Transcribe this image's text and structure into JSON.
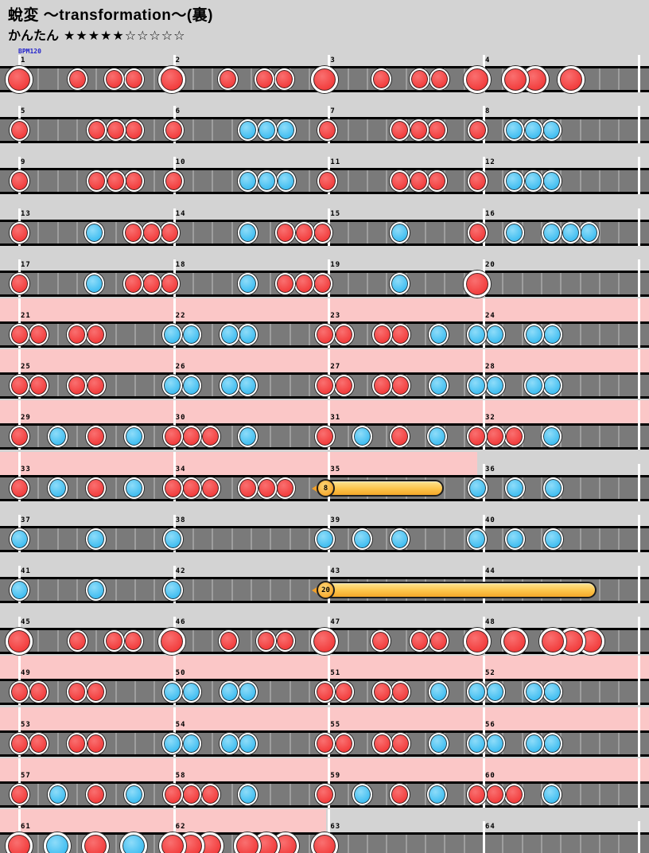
{
  "header": {
    "title": "蛻変 ～transformation～(裏)",
    "difficulty": "かんたん",
    "stars": "★★★★★☆☆☆☆☆",
    "bpm": "BPM120"
  },
  "colors": {
    "background": "#d3d3d3",
    "track": "#7a7a7a",
    "gogo_pink": "#fbc7c7",
    "don_red": "#f23c3c",
    "ka_blue": "#3fbdf1",
    "roll_yellow": "#fcc44a",
    "measure_line": "#ffffff",
    "bpm_text": "#2222cc"
  },
  "note_legend": {
    "d": "small don (red)",
    "D": "big don (red)",
    "k": "small ka (blue)",
    "K": "big ka (blue)",
    "roll": [
      "roll",
      "x_start",
      "x_end",
      "hits_label"
    ]
  },
  "rows": [
    {
      "measures": [
        1,
        2,
        3,
        4
      ],
      "gogo": null,
      "notes": [
        [
          "D",
          24
        ],
        [
          "d",
          97
        ],
        [
          "d",
          143
        ],
        [
          "d",
          168
        ],
        [
          "D",
          216
        ],
        [
          "d",
          286
        ],
        [
          "d",
          332
        ],
        [
          "d",
          357
        ],
        [
          "D",
          408
        ],
        [
          "d",
          479
        ],
        [
          "d",
          527
        ],
        [
          "d",
          552
        ],
        [
          "D",
          600
        ],
        [
          "D",
          648
        ],
        [
          "D",
          673
        ],
        [
          "D",
          718
        ]
      ]
    },
    {
      "measures": [
        5,
        6,
        7,
        8
      ],
      "gogo": null,
      "notes": [
        [
          "d",
          24
        ],
        [
          "d",
          121
        ],
        [
          "d",
          145
        ],
        [
          "d",
          168
        ],
        [
          "d",
          218
        ],
        [
          "k",
          311
        ],
        [
          "k",
          335
        ],
        [
          "k",
          359
        ],
        [
          "d",
          411
        ],
        [
          "d",
          502
        ],
        [
          "d",
          526
        ],
        [
          "d",
          549
        ],
        [
          "d",
          600
        ],
        [
          "k",
          646
        ],
        [
          "k",
          670
        ],
        [
          "k",
          693
        ]
      ]
    },
    {
      "measures": [
        9,
        10,
        11,
        12
      ],
      "gogo": null,
      "notes": [
        [
          "d",
          24
        ],
        [
          "d",
          121
        ],
        [
          "d",
          145
        ],
        [
          "d",
          168
        ],
        [
          "d",
          218
        ],
        [
          "k",
          311
        ],
        [
          "k",
          335
        ],
        [
          "k",
          359
        ],
        [
          "d",
          411
        ],
        [
          "d",
          502
        ],
        [
          "d",
          526
        ],
        [
          "d",
          549
        ],
        [
          "d",
          600
        ],
        [
          "k",
          646
        ],
        [
          "k",
          670
        ],
        [
          "k",
          693
        ]
      ]
    },
    {
      "measures": [
        13,
        14,
        15,
        16
      ],
      "gogo": null,
      "notes": [
        [
          "d",
          24
        ],
        [
          "k",
          118
        ],
        [
          "d",
          167
        ],
        [
          "d",
          190
        ],
        [
          "d",
          213
        ],
        [
          "k",
          311
        ],
        [
          "d",
          358
        ],
        [
          "d",
          382
        ],
        [
          "d",
          405
        ],
        [
          "k",
          502
        ],
        [
          "d",
          600
        ],
        [
          "k",
          646
        ],
        [
          "k",
          693
        ],
        [
          "k",
          717
        ],
        [
          "k",
          740
        ]
      ]
    },
    {
      "measures": [
        17,
        18,
        19,
        20
      ],
      "gogo": null,
      "notes": [
        [
          "d",
          24
        ],
        [
          "k",
          118
        ],
        [
          "d",
          167
        ],
        [
          "d",
          190
        ],
        [
          "d",
          213
        ],
        [
          "k",
          311
        ],
        [
          "d",
          358
        ],
        [
          "d",
          382
        ],
        [
          "d",
          405
        ],
        [
          "k",
          502
        ],
        [
          "D",
          600
        ]
      ]
    },
    {
      "measures": [
        21,
        22,
        23,
        24
      ],
      "gogo": [
        0,
        816
      ],
      "notes": [
        [
          "d",
          24
        ],
        [
          "d",
          48
        ],
        [
          "d",
          96
        ],
        [
          "d",
          120
        ],
        [
          "k",
          216
        ],
        [
          "k",
          240
        ],
        [
          "k",
          288
        ],
        [
          "k",
          311
        ],
        [
          "d",
          408
        ],
        [
          "d",
          432
        ],
        [
          "d",
          480
        ],
        [
          "d",
          503
        ],
        [
          "k",
          551
        ],
        [
          "k",
          599
        ],
        [
          "k",
          622
        ],
        [
          "k",
          671
        ],
        [
          "k",
          694
        ]
      ]
    },
    {
      "measures": [
        25,
        26,
        27,
        28
      ],
      "gogo": [
        0,
        816
      ],
      "notes": [
        [
          "d",
          24
        ],
        [
          "d",
          48
        ],
        [
          "d",
          96
        ],
        [
          "d",
          120
        ],
        [
          "k",
          216
        ],
        [
          "k",
          240
        ],
        [
          "k",
          288
        ],
        [
          "k",
          311
        ],
        [
          "d",
          408
        ],
        [
          "d",
          432
        ],
        [
          "d",
          480
        ],
        [
          "d",
          503
        ],
        [
          "k",
          551
        ],
        [
          "k",
          599
        ],
        [
          "k",
          622
        ],
        [
          "k",
          671
        ],
        [
          "k",
          694
        ]
      ]
    },
    {
      "measures": [
        29,
        30,
        31,
        32
      ],
      "gogo": [
        0,
        816
      ],
      "notes": [
        [
          "d",
          24
        ],
        [
          "k",
          72
        ],
        [
          "d",
          120
        ],
        [
          "k",
          168
        ],
        [
          "d",
          217
        ],
        [
          "d",
          240
        ],
        [
          "d",
          264
        ],
        [
          "k",
          311
        ],
        [
          "d",
          408
        ],
        [
          "k",
          455
        ],
        [
          "d",
          502
        ],
        [
          "k",
          549
        ],
        [
          "d",
          599
        ],
        [
          "d",
          622
        ],
        [
          "d",
          646
        ],
        [
          "k",
          693
        ]
      ]
    },
    {
      "measures": [
        33,
        34,
        35,
        36
      ],
      "gogo": [
        0,
        600
      ],
      "notes": [
        [
          "d",
          24
        ],
        [
          "k",
          72
        ],
        [
          "d",
          120
        ],
        [
          "k",
          168
        ],
        [
          "d",
          217
        ],
        [
          "d",
          240
        ],
        [
          "d",
          264
        ],
        [
          "d",
          311
        ],
        [
          "d",
          335
        ],
        [
          "d",
          358
        ],
        [
          "roll",
          400,
          558,
          "8"
        ],
        [
          "k",
          600
        ],
        [
          "k",
          647
        ],
        [
          "k",
          695
        ]
      ]
    },
    {
      "measures": [
        37,
        38,
        39,
        40
      ],
      "gogo": null,
      "notes": [
        [
          "k",
          24
        ],
        [
          "k",
          120
        ],
        [
          "k",
          217
        ],
        [
          "k",
          408
        ],
        [
          "k",
          455
        ],
        [
          "k",
          502
        ],
        [
          "k",
          599
        ],
        [
          "k",
          647
        ],
        [
          "k",
          695
        ]
      ]
    },
    {
      "measures": [
        41,
        42,
        43,
        44
      ],
      "gogo": null,
      "notes": [
        [
          "k",
          24
        ],
        [
          "k",
          120
        ],
        [
          "k",
          217
        ],
        [
          "roll",
          400,
          750,
          "20"
        ]
      ]
    },
    {
      "measures": [
        45,
        46,
        47,
        48
      ],
      "gogo": null,
      "notes": [
        [
          "D",
          24
        ],
        [
          "d",
          97
        ],
        [
          "d",
          143
        ],
        [
          "d",
          167
        ],
        [
          "D",
          216
        ],
        [
          "d",
          287
        ],
        [
          "d",
          334
        ],
        [
          "d",
          358
        ],
        [
          "D",
          408
        ],
        [
          "d",
          478
        ],
        [
          "d",
          527
        ],
        [
          "d",
          551
        ],
        [
          "D",
          600
        ],
        [
          "D",
          647
        ],
        [
          "D",
          695
        ],
        [
          "D",
          719
        ],
        [
          "D",
          743
        ]
      ]
    },
    {
      "measures": [
        49,
        50,
        51,
        52
      ],
      "gogo": [
        0,
        816
      ],
      "notes": [
        [
          "d",
          24
        ],
        [
          "d",
          48
        ],
        [
          "d",
          96
        ],
        [
          "d",
          120
        ],
        [
          "k",
          216
        ],
        [
          "k",
          240
        ],
        [
          "k",
          288
        ],
        [
          "k",
          311
        ],
        [
          "d",
          408
        ],
        [
          "d",
          432
        ],
        [
          "d",
          480
        ],
        [
          "d",
          503
        ],
        [
          "k",
          551
        ],
        [
          "k",
          599
        ],
        [
          "k",
          622
        ],
        [
          "k",
          671
        ],
        [
          "k",
          694
        ]
      ]
    },
    {
      "measures": [
        53,
        54,
        55,
        56
      ],
      "gogo": [
        0,
        816
      ],
      "notes": [
        [
          "d",
          24
        ],
        [
          "d",
          48
        ],
        [
          "d",
          96
        ],
        [
          "d",
          120
        ],
        [
          "k",
          216
        ],
        [
          "k",
          240
        ],
        [
          "k",
          288
        ],
        [
          "k",
          311
        ],
        [
          "d",
          408
        ],
        [
          "d",
          432
        ],
        [
          "d",
          480
        ],
        [
          "d",
          503
        ],
        [
          "k",
          551
        ],
        [
          "k",
          599
        ],
        [
          "k",
          622
        ],
        [
          "k",
          671
        ],
        [
          "k",
          694
        ]
      ]
    },
    {
      "measures": [
        57,
        58,
        59,
        60
      ],
      "gogo": [
        0,
        816
      ],
      "notes": [
        [
          "d",
          24
        ],
        [
          "k",
          72
        ],
        [
          "d",
          120
        ],
        [
          "k",
          168
        ],
        [
          "d",
          217
        ],
        [
          "d",
          240
        ],
        [
          "d",
          264
        ],
        [
          "k",
          311
        ],
        [
          "d",
          408
        ],
        [
          "k",
          455
        ],
        [
          "d",
          502
        ],
        [
          "k",
          549
        ],
        [
          "d",
          599
        ],
        [
          "d",
          622
        ],
        [
          "d",
          646
        ],
        [
          "k",
          693
        ]
      ]
    },
    {
      "measures": [
        61,
        62,
        63,
        64
      ],
      "gogo": [
        0,
        410
      ],
      "notes": [
        [
          "D",
          24
        ],
        [
          "K",
          72
        ],
        [
          "D",
          120
        ],
        [
          "K",
          168
        ],
        [
          "D",
          217
        ],
        [
          "D",
          240
        ],
        [
          "D",
          264
        ],
        [
          "D",
          311
        ],
        [
          "D",
          335
        ],
        [
          "D",
          359
        ],
        [
          "D",
          408
        ]
      ]
    }
  ]
}
